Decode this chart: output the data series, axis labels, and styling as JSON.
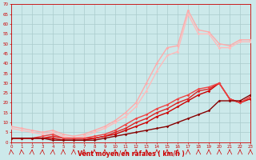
{
  "title": "",
  "xlabel": "Vent moyen/en rafales ( km/h )",
  "ylabel": "",
  "xlim": [
    0,
    23
  ],
  "ylim": [
    0,
    70
  ],
  "yticks": [
    0,
    5,
    10,
    15,
    20,
    25,
    30,
    35,
    40,
    45,
    50,
    55,
    60,
    65,
    70
  ],
  "xticks": [
    0,
    1,
    2,
    3,
    4,
    5,
    6,
    7,
    8,
    9,
    10,
    11,
    12,
    13,
    14,
    15,
    16,
    17,
    18,
    19,
    20,
    21,
    22,
    23
  ],
  "bg_color": "#cce9ea",
  "grid_color": "#aacccc",
  "series": [
    {
      "x": [
        0,
        1,
        2,
        3,
        4,
        5,
        6,
        7,
        8,
        9,
        10,
        11,
        12,
        13,
        14,
        15,
        16,
        17,
        18,
        19,
        20,
        21,
        22,
        23
      ],
      "y": [
        2,
        2,
        2,
        2,
        1,
        1,
        1,
        1,
        1,
        2,
        3,
        4,
        5,
        6,
        7,
        8,
        10,
        12,
        14,
        16,
        21,
        21,
        21,
        24
      ],
      "color": "#880000",
      "lw": 1.0,
      "marker": "D",
      "ms": 1.8,
      "zorder": 5
    },
    {
      "x": [
        0,
        1,
        2,
        3,
        4,
        5,
        6,
        7,
        8,
        9,
        10,
        11,
        12,
        13,
        14,
        15,
        16,
        17,
        18,
        19,
        20,
        21,
        22,
        23
      ],
      "y": [
        2,
        2,
        2,
        2,
        2,
        1,
        1,
        1,
        2,
        3,
        4,
        6,
        8,
        10,
        13,
        15,
        18,
        21,
        24,
        26,
        30,
        22,
        20,
        22
      ],
      "color": "#cc0000",
      "lw": 1.0,
      "marker": "D",
      "ms": 1.8,
      "zorder": 4
    },
    {
      "x": [
        0,
        1,
        2,
        3,
        4,
        5,
        6,
        7,
        8,
        9,
        10,
        11,
        12,
        13,
        14,
        15,
        16,
        17,
        18,
        19,
        20,
        21,
        22,
        23
      ],
      "y": [
        2,
        2,
        2,
        2,
        3,
        2,
        2,
        2,
        2,
        3,
        5,
        7,
        10,
        12,
        15,
        17,
        20,
        22,
        26,
        27,
        30,
        22,
        20,
        23
      ],
      "color": "#dd2222",
      "lw": 1.0,
      "marker": "D",
      "ms": 1.8,
      "zorder": 4
    },
    {
      "x": [
        0,
        1,
        2,
        3,
        4,
        5,
        6,
        7,
        8,
        9,
        10,
        11,
        12,
        13,
        14,
        15,
        16,
        17,
        18,
        19,
        20,
        21,
        22,
        23
      ],
      "y": [
        2,
        2,
        2,
        3,
        4,
        2,
        2,
        2,
        3,
        4,
        6,
        9,
        12,
        14,
        17,
        19,
        22,
        24,
        27,
        28,
        30,
        22,
        20,
        23
      ],
      "color": "#ee4444",
      "lw": 1.0,
      "marker": "D",
      "ms": 1.8,
      "zorder": 4
    },
    {
      "x": [
        0,
        1,
        2,
        3,
        4,
        5,
        6,
        7,
        8,
        9,
        10,
        11,
        12,
        13,
        14,
        15,
        16,
        17,
        18,
        19,
        20,
        21,
        22,
        23
      ],
      "y": [
        8,
        7,
        6,
        5,
        6,
        4,
        3,
        4,
        6,
        8,
        11,
        15,
        20,
        30,
        40,
        48,
        49,
        67,
        57,
        56,
        50,
        49,
        52,
        52
      ],
      "color": "#ffaaaa",
      "lw": 1.0,
      "marker": "D",
      "ms": 1.8,
      "zorder": 3
    },
    {
      "x": [
        0,
        1,
        2,
        3,
        4,
        5,
        6,
        7,
        8,
        9,
        10,
        11,
        12,
        13,
        14,
        15,
        16,
        17,
        18,
        19,
        20,
        21,
        22,
        23
      ],
      "y": [
        7,
        6,
        5,
        4,
        5,
        3,
        2,
        3,
        5,
        7,
        10,
        13,
        18,
        26,
        36,
        44,
        46,
        65,
        55,
        55,
        48,
        48,
        51,
        51
      ],
      "color": "#ffbbbb",
      "lw": 1.0,
      "marker": "D",
      "ms": 1.8,
      "zorder": 3
    }
  ]
}
